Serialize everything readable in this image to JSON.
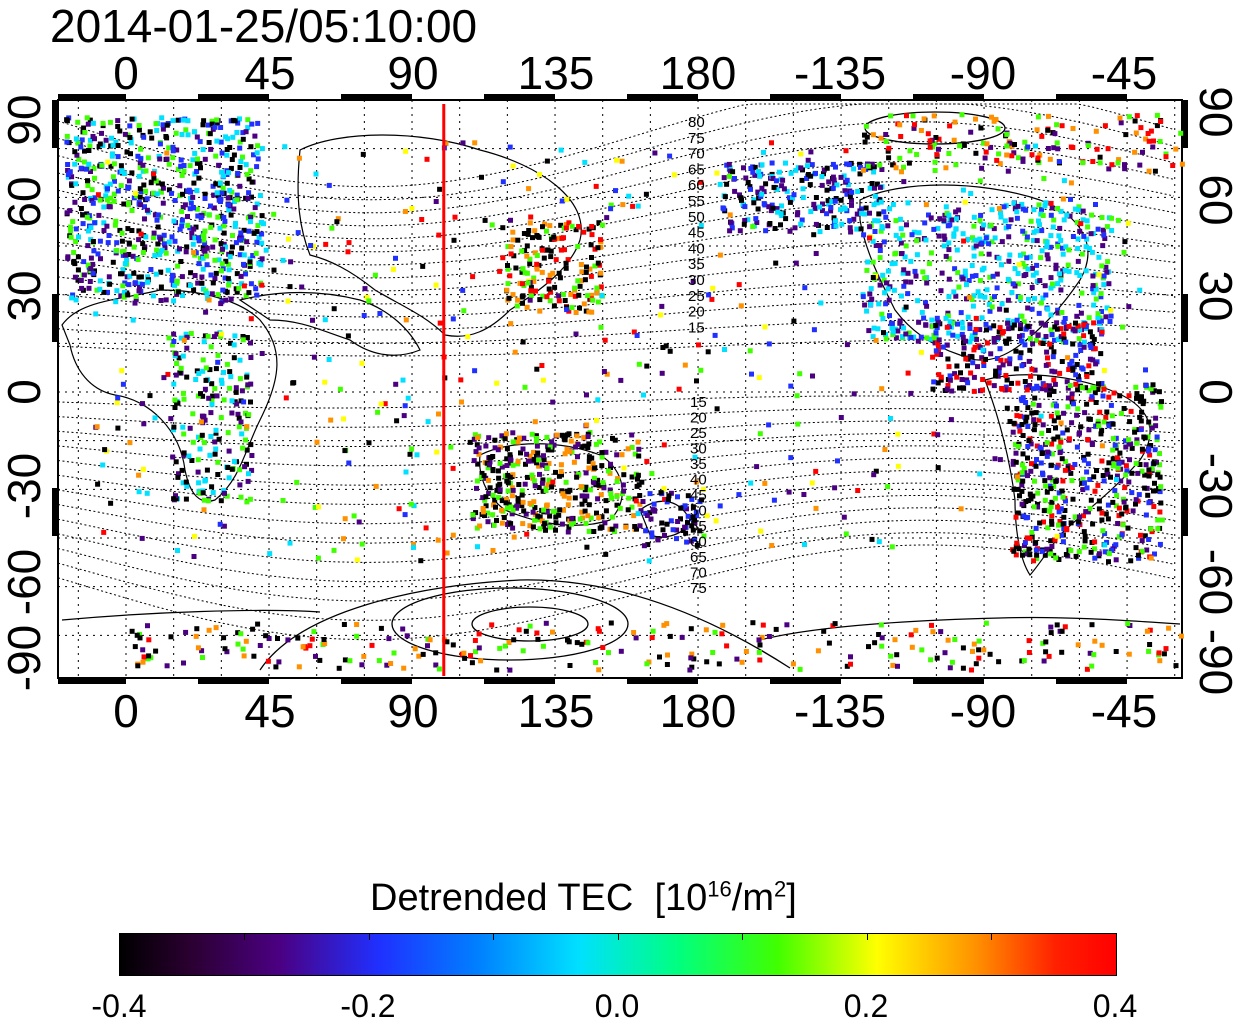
{
  "timestamp": "2014-01-25/05:10:00",
  "map": {
    "lon_ticks": [
      "0",
      "45",
      "90",
      "135",
      "180",
      "-135",
      "-90",
      "-45"
    ],
    "lat_ticks_left": [
      "90",
      "60",
      "30",
      "0",
      "-30",
      "-60",
      "-90"
    ],
    "lat_ticks_right": [
      "90",
      "60",
      "30",
      "0",
      "-30",
      "-60",
      "-90"
    ],
    "contour_labels_north": [
      "80",
      "75",
      "70",
      "65",
      "60",
      "55",
      "50",
      "45",
      "40",
      "35",
      "30",
      "25",
      "20",
      "15"
    ],
    "contour_labels_south": [
      "15",
      "20",
      "25",
      "30",
      "35",
      "40",
      "45",
      "50",
      "55",
      "60",
      "65",
      "70",
      "75"
    ],
    "marker_longitude": 100,
    "marker_color": "#ff0000"
  },
  "colorbar": {
    "title": "Detrended TEC",
    "unit_prefix": "[10",
    "unit_exp": "16",
    "unit_mid": "/m",
    "unit_exp2": "2",
    "unit_suffix": "]",
    "ticks": [
      "-0.4",
      "-0.2",
      "0.0",
      "0.2",
      "0.4"
    ],
    "range": [
      -0.4,
      0.4
    ],
    "colors": [
      "#000000",
      "#4b0082",
      "#2030ff",
      "#00e0ff",
      "#40ff00",
      "#ffff00",
      "#ff9000",
      "#ff0000"
    ]
  }
}
